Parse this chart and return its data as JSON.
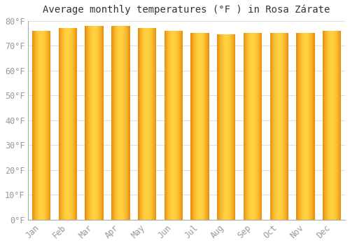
{
  "title": "Average monthly temperatures (°F ) in Rosa Zárate",
  "months": [
    "Jan",
    "Feb",
    "Mar",
    "Apr",
    "May",
    "Jun",
    "Jul",
    "Aug",
    "Sep",
    "Oct",
    "Nov",
    "Dec"
  ],
  "values": [
    76,
    77,
    78,
    78,
    77,
    76,
    75,
    74.5,
    75,
    75,
    75,
    76
  ],
  "ylim": [
    0,
    80
  ],
  "yticks": [
    0,
    10,
    20,
    30,
    40,
    50,
    60,
    70,
    80
  ],
  "ytick_labels": [
    "0°F",
    "10°F",
    "20°F",
    "30°F",
    "40°F",
    "50°F",
    "60°F",
    "70°F",
    "80°F"
  ],
  "bar_color_left": "#E8890A",
  "bar_color_center": "#FFD040",
  "bar_color_right": "#E8890A",
  "background_color": "#FFFFFF",
  "plot_bg_color": "#FFFFFF",
  "grid_color": "#DDDDDD",
  "title_fontsize": 10,
  "tick_fontsize": 8.5,
  "font_family": "monospace",
  "title_color": "#333333",
  "tick_color": "#999999"
}
